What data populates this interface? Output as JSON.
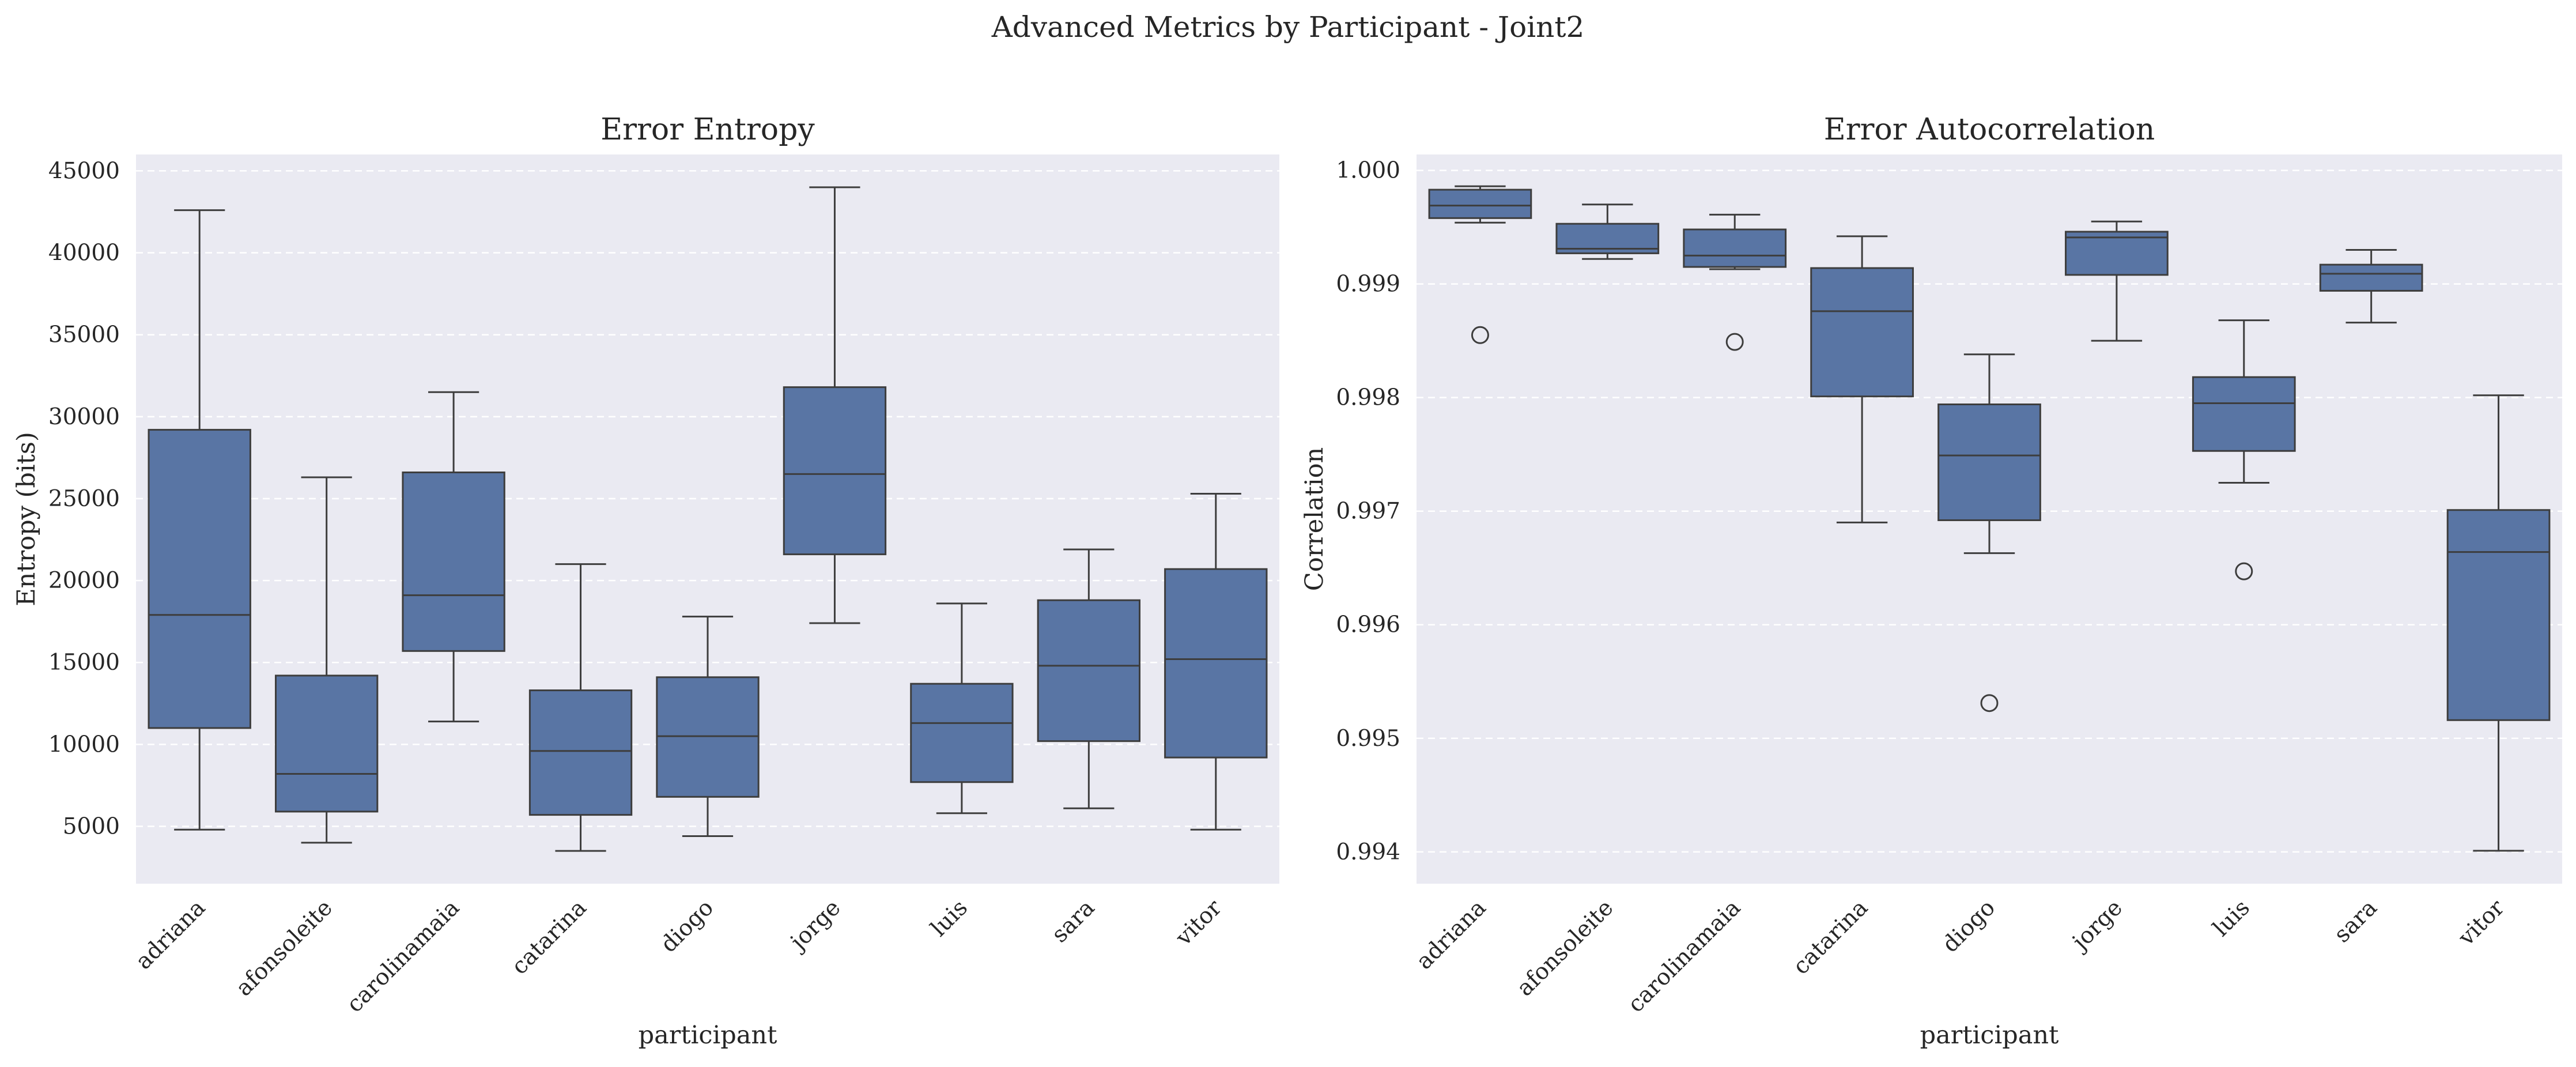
{
  "figure_title": "Advanced Metrics by Participant - Joint2",
  "colors": {
    "box_fill": "#5975a4",
    "line": "#3d3d3d",
    "plot_bg": "#eaeaf2",
    "grid": "#ffffff",
    "text": "#262626"
  },
  "chart_data": [
    {
      "type": "box",
      "title": "Error Entropy",
      "xlabel": "participant",
      "ylabel": "Entropy (bits)",
      "ylim": [
        1500,
        46000
      ],
      "yticks": [
        5000,
        10000,
        15000,
        20000,
        25000,
        30000,
        35000,
        40000,
        45000
      ],
      "ytick_labels": [
        "5000",
        "10000",
        "15000",
        "20000",
        "25000",
        "30000",
        "35000",
        "40000",
        "45000"
      ],
      "grid": "horizontal dashed",
      "categories": [
        "adriana",
        "afonsoleite",
        "carolinamaia",
        "catarina",
        "diogo",
        "jorge",
        "luis",
        "sara",
        "vitor"
      ],
      "boxes": [
        {
          "whislo": 4800,
          "q1": 11000,
          "med": 17900,
          "q3": 29200,
          "whishi": 42600,
          "fliers": []
        },
        {
          "whislo": 4000,
          "q1": 5900,
          "med": 8200,
          "q3": 14200,
          "whishi": 26300,
          "fliers": []
        },
        {
          "whislo": 11400,
          "q1": 15700,
          "med": 19100,
          "q3": 26600,
          "whishi": 31500,
          "fliers": []
        },
        {
          "whislo": 3500,
          "q1": 5700,
          "med": 9600,
          "q3": 13300,
          "whishi": 21000,
          "fliers": []
        },
        {
          "whislo": 4400,
          "q1": 6800,
          "med": 10500,
          "q3": 14100,
          "whishi": 17800,
          "fliers": []
        },
        {
          "whislo": 17400,
          "q1": 21600,
          "med": 26500,
          "q3": 31800,
          "whishi": 44000,
          "fliers": []
        },
        {
          "whislo": 5800,
          "q1": 7700,
          "med": 11300,
          "q3": 13700,
          "whishi": 18600,
          "fliers": []
        },
        {
          "whislo": 6100,
          "q1": 10200,
          "med": 14800,
          "q3": 18800,
          "whishi": 21900,
          "fliers": []
        },
        {
          "whislo": 4800,
          "q1": 9200,
          "med": 15200,
          "q3": 20700,
          "whishi": 25300,
          "fliers": []
        }
      ]
    },
    {
      "type": "box",
      "title": "Error Autocorrelation",
      "xlabel": "participant",
      "ylabel": "Correlation",
      "ylim": [
        0.99372,
        1.00014
      ],
      "yticks": [
        0.994,
        0.995,
        0.996,
        0.997,
        0.998,
        0.999,
        1.0
      ],
      "ytick_labels": [
        "0.994",
        "0.995",
        "0.996",
        "0.997",
        "0.998",
        "0.999",
        "1.000"
      ],
      "grid": "horizontal dashed",
      "categories": [
        "adriana",
        "afonsoleite",
        "carolinamaia",
        "catarina",
        "diogo",
        "jorge",
        "luis",
        "sara",
        "vitor"
      ],
      "boxes": [
        {
          "whislo": 0.99954,
          "q1": 0.99958,
          "med": 0.99969,
          "q3": 0.99983,
          "whishi": 0.99986,
          "fliers": [
            0.99855
          ]
        },
        {
          "whislo": 0.99922,
          "q1": 0.99927,
          "med": 0.99931,
          "q3": 0.99953,
          "whishi": 0.9997,
          "fliers": []
        },
        {
          "whislo": 0.99913,
          "q1": 0.99915,
          "med": 0.99925,
          "q3": 0.99948,
          "whishi": 0.99961,
          "fliers": [
            0.99849
          ]
        },
        {
          "whislo": 0.9969,
          "q1": 0.99801,
          "med": 0.99876,
          "q3": 0.99914,
          "whishi": 0.99942,
          "fliers": []
        },
        {
          "whislo": 0.99663,
          "q1": 0.99692,
          "med": 0.99749,
          "q3": 0.99794,
          "whishi": 0.99838,
          "fliers": [
            0.99531
          ]
        },
        {
          "whislo": 0.9985,
          "q1": 0.99908,
          "med": 0.99941,
          "q3": 0.99946,
          "whishi": 0.99955,
          "fliers": []
        },
        {
          "whislo": 0.99725,
          "q1": 0.99753,
          "med": 0.99795,
          "q3": 0.99818,
          "whishi": 0.99868,
          "fliers": [
            0.99647
          ]
        },
        {
          "whislo": 0.99866,
          "q1": 0.99894,
          "med": 0.99909,
          "q3": 0.99917,
          "whishi": 0.9993,
          "fliers": []
        },
        {
          "whislo": 0.99401,
          "q1": 0.99516,
          "med": 0.99664,
          "q3": 0.99701,
          "whishi": 0.99802,
          "fliers": []
        }
      ]
    }
  ]
}
